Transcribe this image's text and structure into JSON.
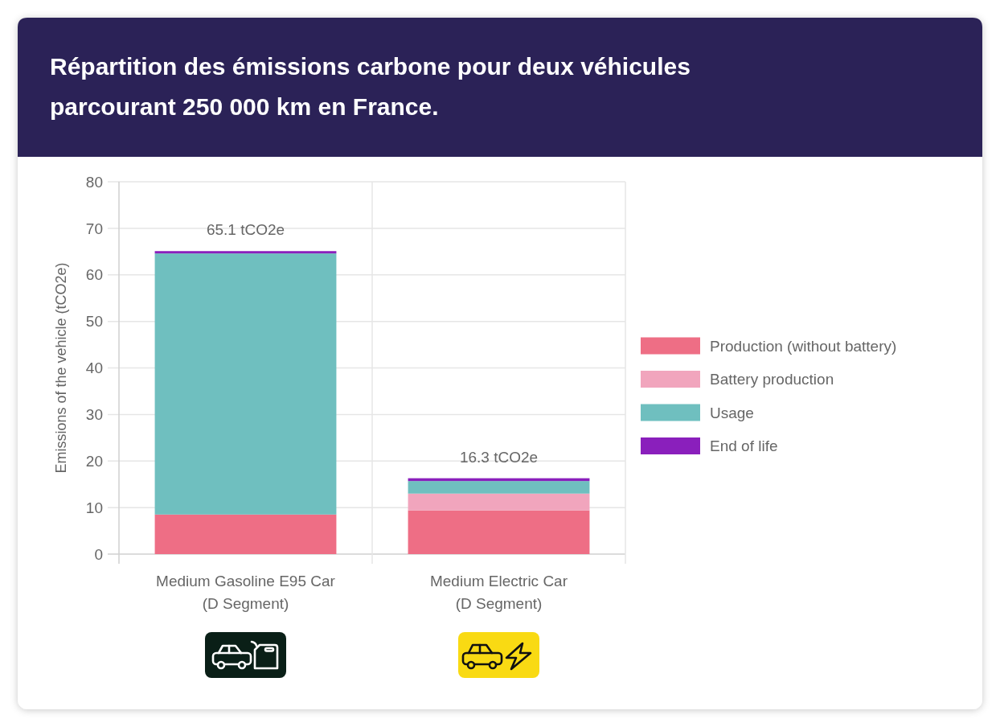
{
  "chart_data": {
    "type": "bar",
    "title": "Répartition des émissions carbone pour deux véhicules parcourant 250 000 km en France.",
    "ylabel": "Emissions of the vehicle (tCO2e)",
    "categories": [
      "Medium Gasoline E95 Car\n(D Segment)",
      "Medium Electric Car\n(D Segment)"
    ],
    "series": [
      {
        "name": "Production (without battery)",
        "color": "#ee6e85",
        "values": [
          8.5,
          9.4
        ]
      },
      {
        "name": "Battery production",
        "color": "#f1a5bd",
        "values": [
          null,
          3.6
        ]
      },
      {
        "name": "Usage",
        "color": "#6fbfbf",
        "values": [
          56.1,
          2.7
        ]
      },
      {
        "name": "End of life",
        "color": "#8a1fbc",
        "values": [
          0.5,
          0.6
        ]
      }
    ],
    "stacked": true,
    "totals": [
      "65.1 tCO2e",
      "16.3 tCO2e"
    ],
    "ylim": [
      0,
      80
    ],
    "yticks": [
      0,
      10,
      20,
      30,
      40,
      50,
      60,
      70,
      80
    ],
    "grid": true,
    "legend": "right"
  }
}
